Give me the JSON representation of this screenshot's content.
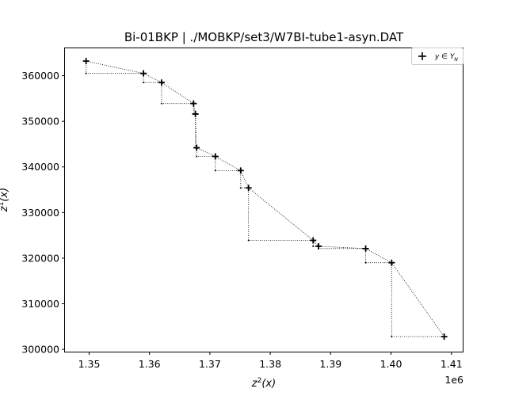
{
  "chart_data": {
    "type": "scatter",
    "title": "Bi-01BKP | ./MOBKP/set3/W7BI-tube1-asyn.DAT",
    "xlabel": "z^2(x)",
    "ylabel": "z^1(x)",
    "x_offset_label": "1e6",
    "xlim": [
      1346000,
      1412000
    ],
    "ylim": [
      299500,
      366000
    ],
    "xticks": [
      1350000,
      1360000,
      1370000,
      1380000,
      1390000,
      1400000,
      1410000
    ],
    "xtick_labels": [
      "1.35",
      "1.36",
      "1.37",
      "1.38",
      "1.39",
      "1.40",
      "1.41"
    ],
    "yticks": [
      300000,
      310000,
      320000,
      330000,
      340000,
      350000,
      360000
    ],
    "ytick_labels": [
      "300000",
      "310000",
      "320000",
      "330000",
      "340000",
      "350000",
      "360000"
    ],
    "legend": {
      "placement": "top-right",
      "entries": [
        {
          "label": "y ∈ Y_N",
          "marker": "+"
        }
      ]
    },
    "grid": false,
    "series": [
      {
        "name": "y ∈ Y_N",
        "marker": "+",
        "x": [
          1349500,
          1359000,
          1362000,
          1367300,
          1367600,
          1367800,
          1370900,
          1375100,
          1376400,
          1387100,
          1388000,
          1395800,
          1400100,
          1408800
        ],
        "y": [
          363200,
          360500,
          358500,
          353900,
          351600,
          344200,
          342300,
          339200,
          335400,
          323900,
          322600,
          322100,
          319000,
          302800
        ]
      }
    ]
  }
}
